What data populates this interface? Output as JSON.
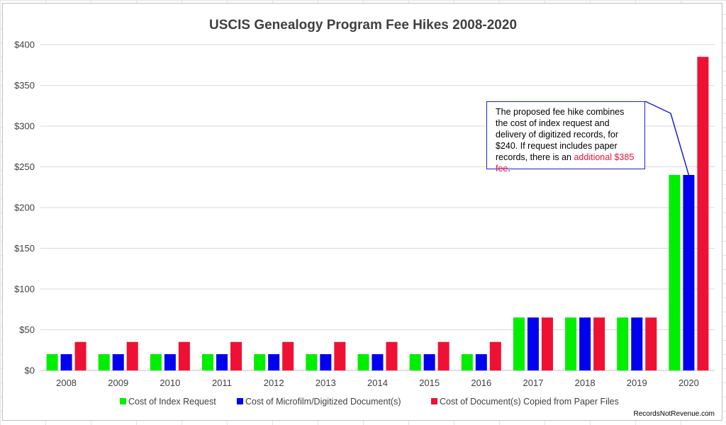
{
  "chart_data": {
    "type": "bar",
    "title": "USCIS Genealogy Program Fee Hikes 2008-2020",
    "categories": [
      "2008",
      "2009",
      "2010",
      "2011",
      "2012",
      "2013",
      "2014",
      "2015",
      "2016",
      "2017",
      "2018",
      "2019",
      "2020"
    ],
    "series": [
      {
        "name": "Cost of Index Request",
        "color": "#00ee00",
        "values": [
          20,
          20,
          20,
          20,
          20,
          20,
          20,
          20,
          20,
          65,
          65,
          65,
          240
        ]
      },
      {
        "name": "Cost of Microfilm/Digitized Document(s)",
        "color": "#0000ee",
        "values": [
          20,
          20,
          20,
          20,
          20,
          20,
          20,
          20,
          20,
          65,
          65,
          65,
          240
        ]
      },
      {
        "name": "Cost of Document(s) Copied from Paper Files",
        "color": "#ee1133",
        "values": [
          35,
          35,
          35,
          35,
          35,
          35,
          35,
          35,
          35,
          65,
          65,
          65,
          385
        ]
      }
    ],
    "ylim": [
      0,
      400
    ],
    "yticks": [
      "$0",
      "$50",
      "$100",
      "$150",
      "$200",
      "$250",
      "$300",
      "$350",
      "$400"
    ],
    "ytick_values": [
      0,
      50,
      100,
      150,
      200,
      250,
      300,
      350,
      400
    ],
    "grid": true,
    "legend_position": "bottom",
    "xlabel": "",
    "ylabel": "",
    "annotation": {
      "text_before": "The proposed fee hike combines the cost of index request and delivery of digitized records, for $240. If request includes paper records, there is an ",
      "highlight": "additional $385 fee",
      "text_after": ".",
      "highlight_color": "#ee1133",
      "points_to": {
        "category": "2020",
        "series": "Cost of Microfilm/Digitized Document(s)"
      }
    }
  },
  "credit": "RecordsNotRevenue.com"
}
